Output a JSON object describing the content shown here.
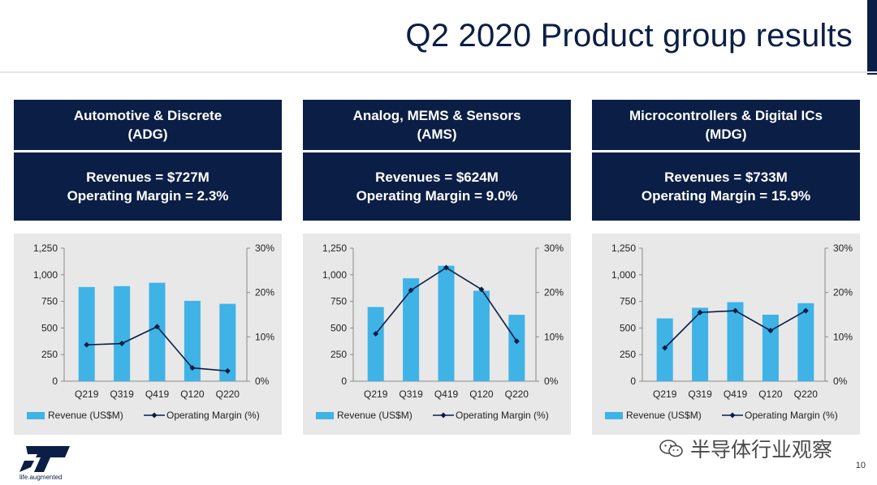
{
  "slide": {
    "title": "Q2 2020 Product group results",
    "page_number": "10",
    "logo_tagline": "life.augmented",
    "watermark_text": "半导体行业观察",
    "colors": {
      "navy": "#0b1e45",
      "bar": "#3fb3e6",
      "line": "#0b1e45",
      "chart_bg": "#e8e8e8"
    }
  },
  "panels": [
    {
      "name_line1": "Automotive & Discrete",
      "name_line2": "(ADG)",
      "revenue_text": "Revenues = $727M",
      "margin_text": "Operating Margin = 2.3%"
    },
    {
      "name_line1": "Analog, MEMS & Sensors",
      "name_line2": "(AMS)",
      "revenue_text": "Revenues = $624M",
      "margin_text": "Operating Margin = 9.0%"
    },
    {
      "name_line1": "Microcontrollers & Digital ICs",
      "name_line2": "(MDG)",
      "revenue_text": "Revenues = $733M",
      "margin_text": "Operating Margin = 15.9%"
    }
  ],
  "chart_data": [
    {
      "type": "bar",
      "categories": [
        "Q219",
        "Q319",
        "Q419",
        "Q120",
        "Q220"
      ],
      "series": [
        {
          "name": "Revenue (US$M)",
          "type": "bar",
          "axis": "left",
          "values": [
            885,
            893,
            925,
            755,
            727
          ]
        },
        {
          "name": "Operating Margin (%)",
          "type": "line",
          "axis": "right",
          "values": [
            8.2,
            8.5,
            12.3,
            3.0,
            2.3
          ]
        }
      ],
      "left_axis": {
        "range": [
          0,
          1250
        ],
        "ticks": [
          "0",
          "250",
          "500",
          "750",
          "1,000",
          "1,250"
        ]
      },
      "right_axis": {
        "range": [
          0,
          30
        ],
        "ticks": [
          "0%",
          "10%",
          "20%",
          "30%"
        ]
      },
      "legend": "bottom"
    },
    {
      "type": "bar",
      "categories": [
        "Q219",
        "Q319",
        "Q419",
        "Q120",
        "Q220"
      ],
      "series": [
        {
          "name": "Revenue (US$M)",
          "type": "bar",
          "axis": "left",
          "values": [
            697,
            967,
            1085,
            850,
            624
          ]
        },
        {
          "name": "Operating Margin (%)",
          "type": "line",
          "axis": "right",
          "values": [
            10.7,
            20.5,
            25.6,
            20.7,
            9.0
          ]
        }
      ],
      "left_axis": {
        "range": [
          0,
          1250
        ],
        "ticks": [
          "0",
          "250",
          "500",
          "750",
          "1,000",
          "1,250"
        ]
      },
      "right_axis": {
        "range": [
          0,
          30
        ],
        "ticks": [
          "0%",
          "10%",
          "20%",
          "30%"
        ]
      },
      "legend": "bottom"
    },
    {
      "type": "bar",
      "categories": [
        "Q219",
        "Q319",
        "Q419",
        "Q120",
        "Q220"
      ],
      "series": [
        {
          "name": "Revenue (US$M)",
          "type": "bar",
          "axis": "left",
          "values": [
            590,
            690,
            743,
            625,
            733
          ]
        },
        {
          "name": "Operating Margin (%)",
          "type": "line",
          "axis": "right",
          "values": [
            7.5,
            15.5,
            15.9,
            11.4,
            15.9
          ]
        }
      ],
      "left_axis": {
        "range": [
          0,
          1250
        ],
        "ticks": [
          "0",
          "250",
          "500",
          "750",
          "1,000",
          "1,250"
        ]
      },
      "right_axis": {
        "range": [
          0,
          30
        ],
        "ticks": [
          "0%",
          "10%",
          "20%",
          "30%"
        ]
      },
      "legend": "bottom"
    }
  ]
}
